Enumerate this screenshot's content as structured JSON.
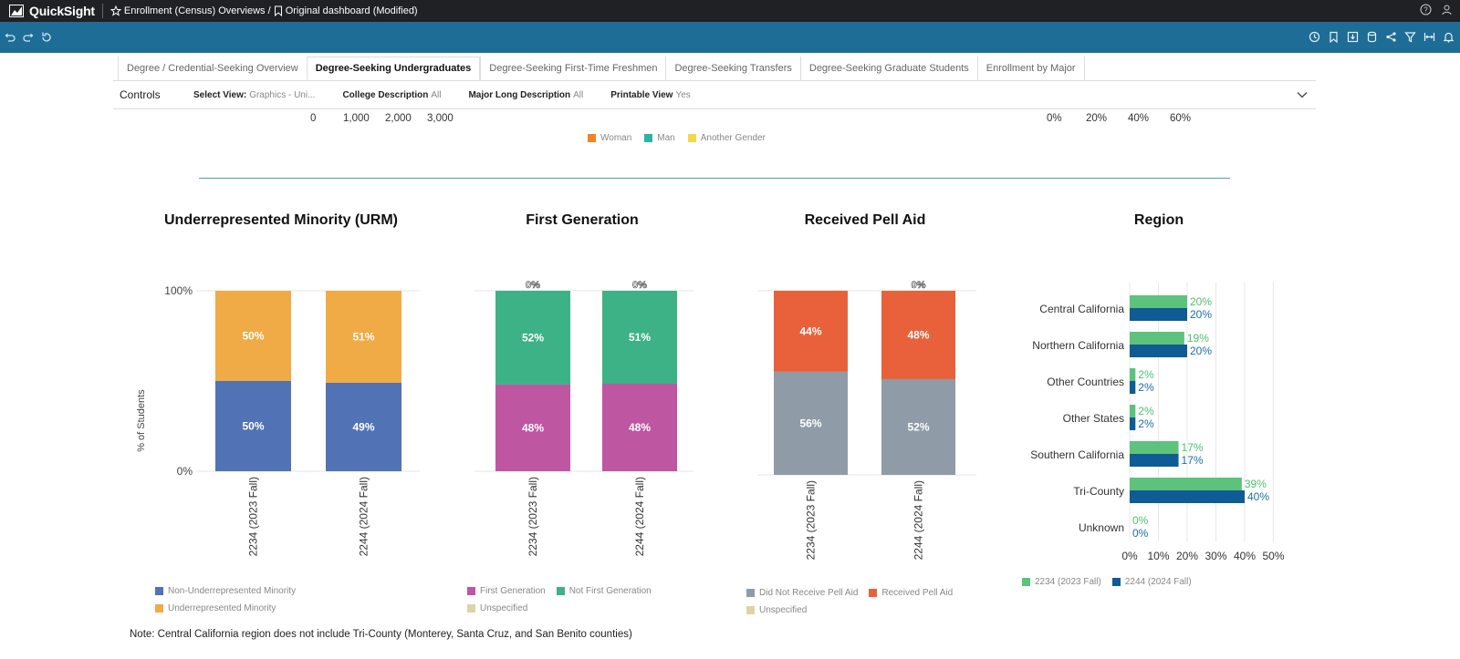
{
  "header": {
    "app_name": "QuickSight",
    "breadcrumb_analysis": "Enrollment (Census) Overviews /",
    "breadcrumb_sheet": "Original dashboard (Modified)"
  },
  "tabs": [
    {
      "label": "Degree / Credential-Seeking Overview",
      "active": false
    },
    {
      "label": "Degree-Seeking Undergraduates",
      "active": true
    },
    {
      "label": "Degree-Seeking First-Time Freshmen",
      "active": false
    },
    {
      "label": "Degree-Seeking Transfers",
      "active": false
    },
    {
      "label": "Degree-Seeking Graduate Students",
      "active": false
    },
    {
      "label": "Enrollment by Major",
      "active": false
    }
  ],
  "controls": {
    "title": "Controls",
    "select_view": {
      "label": "Select View:",
      "value": "Graphics - Uni..."
    },
    "college": {
      "label": "College Description",
      "value": "All"
    },
    "major": {
      "label": "Major Long Description",
      "value": "All"
    },
    "printable": {
      "label": "Printable View",
      "value": "Yes"
    }
  },
  "top_remnant": {
    "left_ticks": [
      "0",
      "1,000",
      "2,000",
      "3,000"
    ],
    "right_ticks": [
      "0%",
      "20%",
      "40%",
      "60%"
    ],
    "legend": [
      {
        "label": "Woman",
        "color": "#f48225"
      },
      {
        "label": "Man",
        "color": "#2bb3a6"
      },
      {
        "label": "Another Gender",
        "color": "#f4d84a"
      }
    ]
  },
  "chart_data": [
    {
      "type": "bar",
      "stacked": true,
      "title": "Underrepresented Minority (URM)",
      "ylabel": "% of Students",
      "ytick_labels": [
        "100%",
        "0%"
      ],
      "categories": [
        "2234 (2023 Fall)",
        "2244 (2024 Fall)"
      ],
      "series": [
        {
          "name": "Non-Underrepresented Minority",
          "color": "#5172b5",
          "values": [
            50,
            49
          ],
          "labels": [
            "50%",
            "49%"
          ]
        },
        {
          "name": "Underrepresented Minority",
          "color": "#f0ab46",
          "values": [
            50,
            51
          ],
          "labels": [
            "50%",
            "51%"
          ]
        }
      ]
    },
    {
      "type": "bar",
      "stacked": true,
      "title": "First Generation",
      "categories": [
        "2234 (2023 Fall)",
        "2244 (2024 Fall)"
      ],
      "top_labels": [
        "0%",
        "0%"
      ],
      "series": [
        {
          "name": "First Generation",
          "color": "#bf56a2",
          "values": [
            48,
            48
          ],
          "labels": [
            "48%",
            "48%"
          ]
        },
        {
          "name": "Not First Generation",
          "color": "#3db287",
          "values": [
            52,
            51
          ],
          "labels": [
            "52%",
            "51%"
          ]
        },
        {
          "name": "Unspecified",
          "color": "#ddd4a6",
          "values": [
            0,
            0
          ],
          "labels": [
            "",
            ""
          ]
        }
      ]
    },
    {
      "type": "bar",
      "stacked": true,
      "title": "Received Pell Aid",
      "categories": [
        "2234 (2023 Fall)",
        "2244 (2024 Fall)"
      ],
      "top_labels": [
        "",
        "0%"
      ],
      "series": [
        {
          "name": "Did Not Receive Pell Aid",
          "color": "#8f9ca7",
          "values": [
            56,
            52
          ],
          "labels": [
            "56%",
            "52%"
          ]
        },
        {
          "name": "Received Pell Aid",
          "color": "#e8613a",
          "values": [
            44,
            48
          ],
          "labels": [
            "44%",
            "48%"
          ]
        },
        {
          "name": "Unspecified",
          "color": "#ddd4a6",
          "values": [
            0,
            0
          ],
          "labels": [
            "",
            ""
          ]
        }
      ]
    },
    {
      "type": "bar",
      "orientation": "horizontal",
      "title": "Region",
      "categories": [
        "Central California",
        "Northern California",
        "Other Countries",
        "Other States",
        "Southern California",
        "Tri-County",
        "Unknown"
      ],
      "xtick_labels": [
        "0%",
        "10%",
        "20%",
        "30%",
        "40%",
        "50%"
      ],
      "xlim": [
        0,
        50
      ],
      "series": [
        {
          "name": "2234 (2023 Fall)",
          "color": "#5cc27c",
          "values": [
            20,
            19,
            2,
            2,
            17,
            39,
            0
          ],
          "labels": [
            "20%",
            "19%",
            "2%",
            "2%",
            "17%",
            "39%",
            "0%"
          ]
        },
        {
          "name": "2244 (2024 Fall)",
          "color": "#0e5c93",
          "values": [
            20,
            20,
            2,
            2,
            17,
            40,
            0
          ],
          "labels": [
            "20%",
            "20%",
            "2%",
            "2%",
            "17%",
            "40%",
            "0%"
          ]
        }
      ]
    }
  ],
  "note": "Note: Central California region does not include Tri-County (Monterey, Santa Cruz, and San Benito counties)"
}
